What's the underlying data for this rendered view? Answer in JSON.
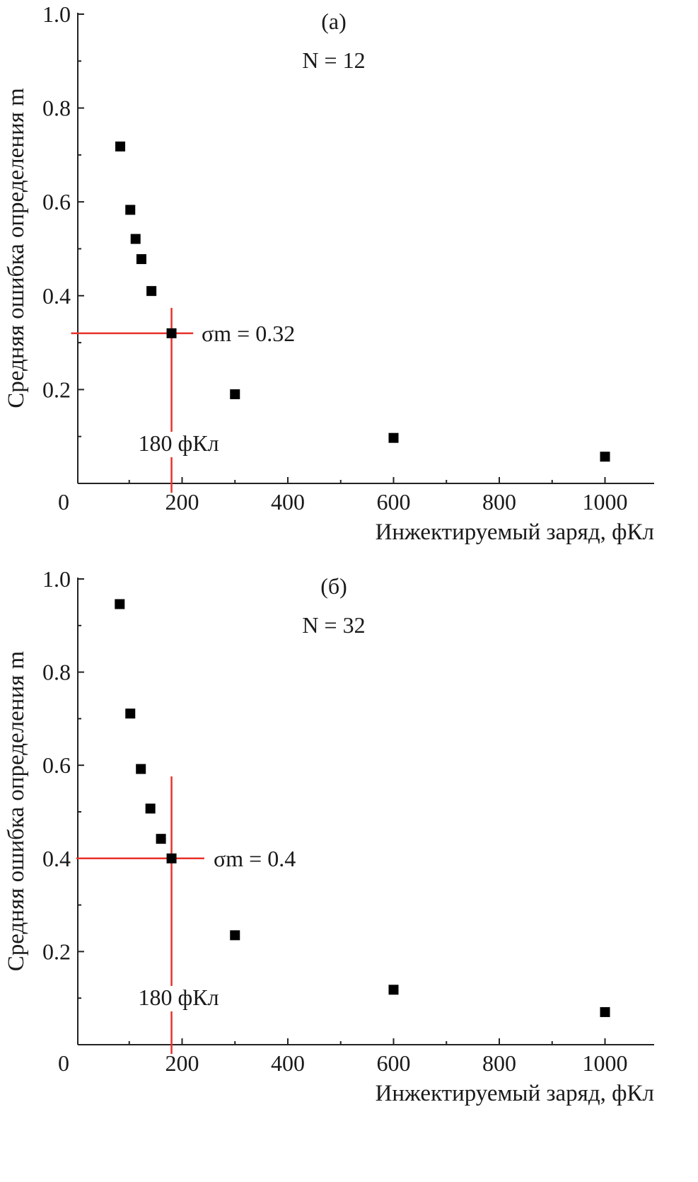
{
  "chart_data": [
    {
      "type": "scatter",
      "panel_label": "(a)",
      "n_label": "N = 12",
      "n_var": "N",
      "n_text": " = 12",
      "xlabel": "Инжектируемый заряд, фКл",
      "ylabel": "Средняя ошибка определения m",
      "xlim": [
        0,
        1100
      ],
      "ylim": [
        0,
        1.0
      ],
      "xticks": [
        "0",
        "200",
        "400",
        "600",
        "800",
        "1000"
      ],
      "xtick_values": [
        0,
        200,
        400,
        600,
        800,
        1000
      ],
      "yticks": [
        "0.2",
        "0.4",
        "0.6",
        "0.8",
        "1.0"
      ],
      "ytick_values": [
        0.2,
        0.4,
        0.6,
        0.8,
        1.0
      ],
      "x": [
        83,
        102,
        112,
        123,
        142,
        180,
        300,
        600,
        1000
      ],
      "y": [
        0.718,
        0.583,
        0.521,
        0.478,
        0.41,
        0.32,
        0.19,
        0.097,
        0.057
      ],
      "marker_color": "#000000",
      "line_color": "#e8322a",
      "hline": {
        "y": 0.32,
        "x_from": -10,
        "x_to": 221
      },
      "vline": {
        "x": 180,
        "y_from": 0.374,
        "y_to": -0.02
      },
      "sigma_label": "σm = 0.32",
      "sigma_sym": "σ",
      "sigma_sub": "m",
      "sigma_text": " = 0.32",
      "charge_label": "180 фКл"
    },
    {
      "type": "scatter",
      "panel_label": "(б)",
      "n_label": "N = 32",
      "n_var": "N",
      "n_text": " = 32",
      "xlabel": "Инжектируемый заряд, фКл",
      "ylabel": "Средняя ошибка определения m",
      "xlim": [
        0,
        1100
      ],
      "ylim": [
        0,
        1.0
      ],
      "xticks": [
        "0",
        "200",
        "400",
        "600",
        "800",
        "1000"
      ],
      "xtick_values": [
        0,
        200,
        400,
        600,
        800,
        1000
      ],
      "yticks": [
        "0.2",
        "0.4",
        "0.6",
        "0.8",
        "1.0"
      ],
      "ytick_values": [
        0.2,
        0.4,
        0.6,
        0.8,
        1.0
      ],
      "x": [
        82,
        102,
        122,
        140,
        160,
        180,
        300,
        600,
        1000
      ],
      "y": [
        0.946,
        0.711,
        0.592,
        0.507,
        0.442,
        0.4,
        0.235,
        0.118,
        0.07
      ],
      "marker_color": "#000000",
      "line_color": "#e8322a",
      "hline": {
        "y": 0.4,
        "x_from": 0,
        "x_to": 242
      },
      "vline": {
        "x": 180,
        "y_from": 0.576,
        "y_to": -0.02
      },
      "sigma_label": "σm = 0.4",
      "sigma_sym": "σ",
      "sigma_sub": "m",
      "sigma_text": " = 0.4",
      "charge_label": "180 фКл"
    }
  ]
}
